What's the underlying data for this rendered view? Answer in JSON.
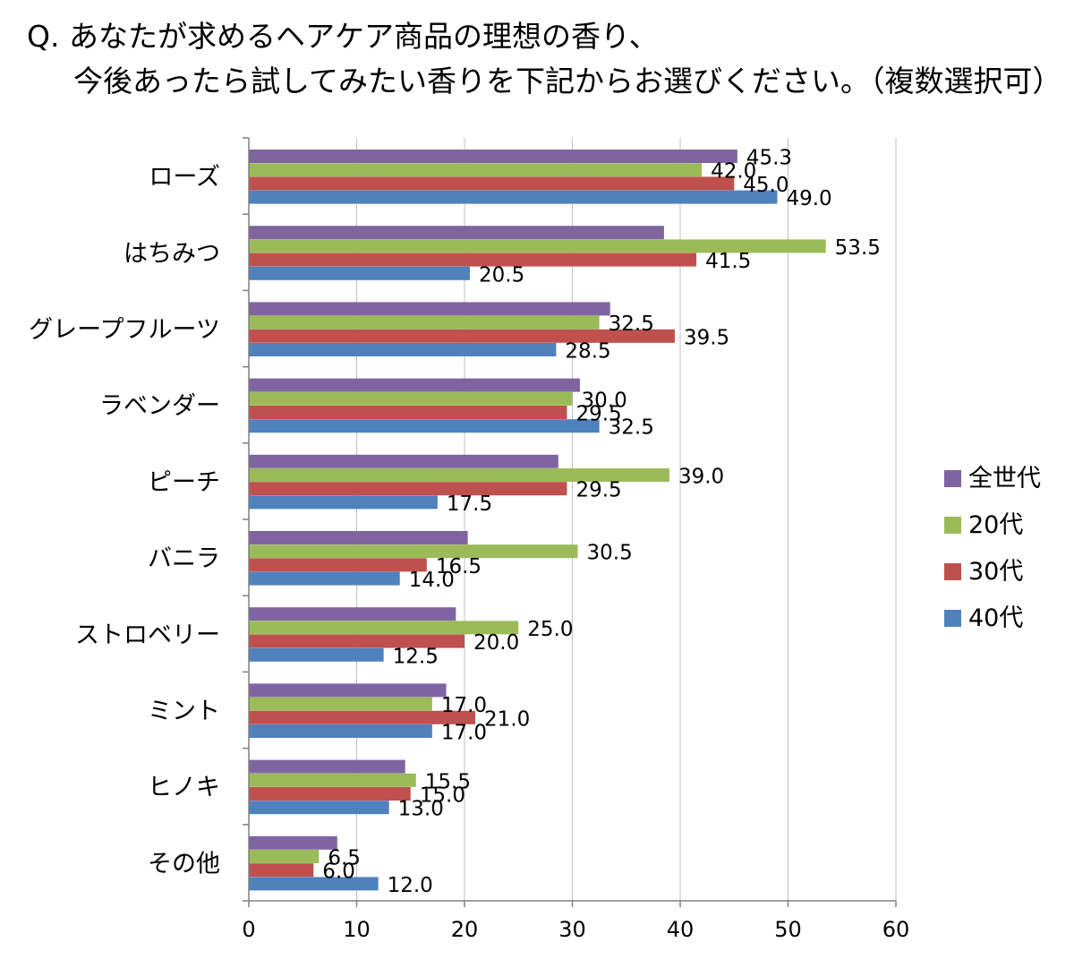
{
  "chart_data": {
    "type": "bar",
    "orientation": "horizontal",
    "title": [
      "Q. あなたが求めるヘアケア商品の理想の香り、",
      "今後あったら試してみたい香りを下記からお選びください。（複数選択可）"
    ],
    "categories": [
      "ローズ",
      "はちみつ",
      "グレープフルーツ",
      "ラベンダー",
      "ピーチ",
      "バニラ",
      "ストロベリー",
      "ミント",
      "ヒノキ",
      "その他"
    ],
    "series": [
      {
        "name": "全世代",
        "color": "#8064a2",
        "values": [
          45.3,
          38.5,
          33.5,
          30.7,
          28.7,
          20.3,
          19.2,
          18.3,
          14.5,
          8.2
        ],
        "labels_shown": [
          true,
          false,
          false,
          false,
          false,
          false,
          false,
          false,
          false,
          false
        ]
      },
      {
        "name": "20代",
        "color": "#9bbb59",
        "values": [
          42.0,
          53.5,
          32.5,
          30.0,
          39.0,
          30.5,
          25.0,
          17.0,
          15.5,
          6.5
        ],
        "labels_shown": [
          true,
          true,
          true,
          true,
          true,
          true,
          true,
          true,
          true,
          true
        ]
      },
      {
        "name": "30代",
        "color": "#c0504d",
        "values": [
          45.0,
          41.5,
          39.5,
          29.5,
          29.5,
          16.5,
          20.0,
          21.0,
          15.0,
          6.0
        ],
        "labels_shown": [
          true,
          true,
          true,
          true,
          true,
          true,
          true,
          true,
          true,
          true
        ]
      },
      {
        "name": "40代",
        "color": "#4f81bd",
        "values": [
          49.0,
          20.5,
          28.5,
          32.5,
          17.5,
          14.0,
          12.5,
          17.0,
          13.0,
          12.0
        ],
        "labels_shown": [
          true,
          true,
          true,
          true,
          true,
          true,
          true,
          true,
          true,
          true
        ]
      }
    ],
    "xlim": [
      0,
      60
    ],
    "xticks": [
      0,
      10,
      20,
      30,
      40,
      50,
      60
    ],
    "grid": "vertical",
    "legend": "right"
  }
}
